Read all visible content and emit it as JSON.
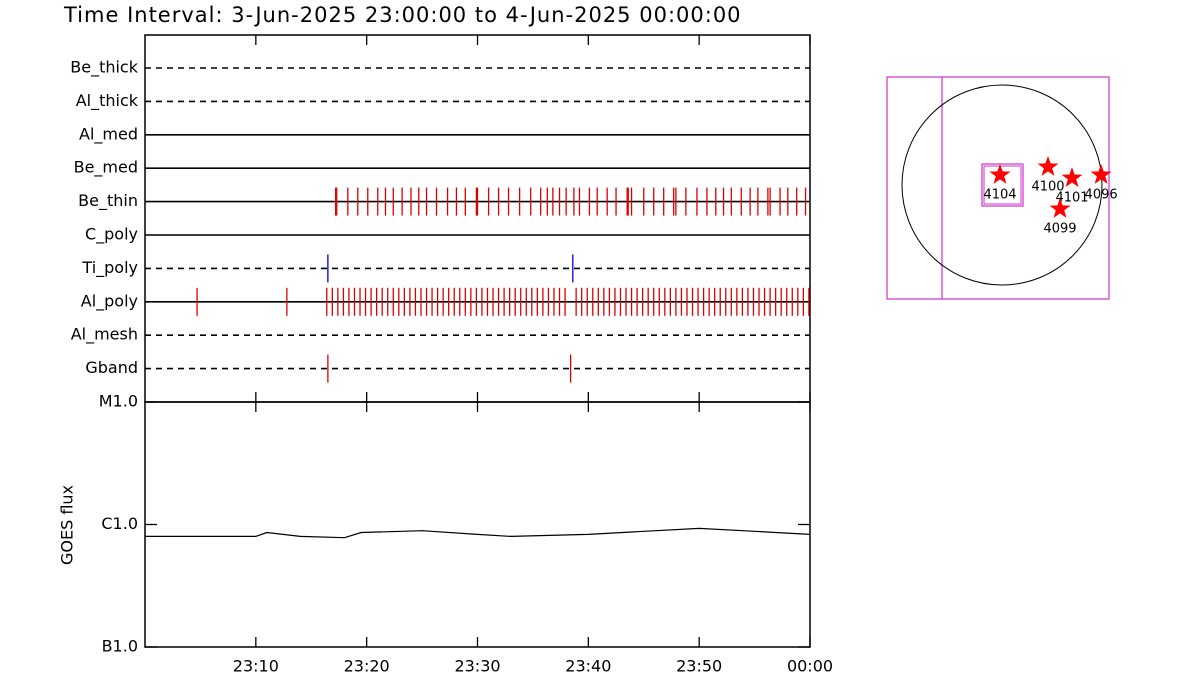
{
  "chart_data": [
    {
      "type": "timeline",
      "title": "Time Interval:  3-Jun-2025 23:00:00 to  4-Jun-2025 00:00:00",
      "xlim": [
        0,
        60
      ],
      "rows": [
        {
          "name": "Be_thick",
          "style": "dashed",
          "color": "#cc0000",
          "events": []
        },
        {
          "name": "Al_thick",
          "style": "dashed",
          "color": "#cc0000",
          "events": []
        },
        {
          "name": "Al_med",
          "style": "solid",
          "color": "#cc0000",
          "events": []
        },
        {
          "name": "Be_med",
          "style": "solid",
          "color": "#cc0000",
          "events": []
        },
        {
          "name": "Be_thin",
          "style": "solid",
          "color": "#dd0000",
          "events": [
            17.2,
            17.3,
            18.3,
            19.2,
            20.1,
            21.0,
            21.7,
            22.4,
            23.2,
            24.0,
            24.7,
            25.4,
            26.3,
            27.3,
            28.1,
            28.9,
            29.9,
            30.0,
            31.0,
            31.9,
            32.8,
            33.8,
            34.8,
            35.7,
            36.3,
            36.8,
            37.4,
            38.0,
            38.7,
            39.2,
            40.1,
            40.8,
            41.7,
            42.5,
            43.5,
            43.6,
            43.9,
            45.0,
            45.9,
            46.8,
            47.7,
            47.9,
            48.8,
            49.8,
            50.7,
            51.5,
            52.2,
            52.9,
            53.8,
            54.6,
            55.3,
            56.2,
            56.4,
            57.3,
            58.0,
            58.8,
            59.6
          ]
        },
        {
          "name": "C_poly",
          "style": "solid",
          "color": "#cc0000",
          "events": []
        },
        {
          "name": "Ti_poly",
          "style": "dashed",
          "color": "#0000cc",
          "events": [
            16.5,
            38.6
          ]
        },
        {
          "name": "Al_poly",
          "style": "solid",
          "color": "#dd0000",
          "events": [
            4.7,
            12.8,
            16.4,
            16.9,
            17.4,
            17.9,
            18.4,
            18.9,
            19.4,
            19.9,
            20.4,
            20.9,
            21.4,
            21.9,
            22.4,
            22.9,
            23.4,
            23.9,
            24.4,
            24.9,
            25.4,
            25.9,
            26.4,
            26.9,
            27.4,
            27.9,
            28.4,
            28.9,
            29.4,
            29.9,
            30.4,
            30.9,
            31.4,
            31.9,
            32.4,
            32.9,
            33.4,
            33.9,
            34.4,
            34.9,
            35.4,
            35.9,
            36.4,
            36.9,
            37.4,
            37.9,
            38.9,
            39.4,
            39.9,
            40.4,
            40.9,
            41.4,
            41.9,
            42.4,
            42.9,
            43.4,
            43.9,
            44.4,
            44.9,
            45.4,
            45.9,
            46.4,
            46.9,
            47.4,
            47.9,
            48.4,
            48.9,
            49.4,
            49.9,
            50.4,
            50.9,
            51.4,
            51.9,
            52.4,
            52.9,
            53.4,
            53.9,
            54.4,
            54.9,
            55.4,
            55.9,
            56.4,
            56.9,
            57.4,
            57.9,
            58.4,
            58.9,
            59.4,
            59.9
          ]
        },
        {
          "name": "Al_mesh",
          "style": "dashed",
          "color": "#cc0000",
          "events": []
        },
        {
          "name": "Gband",
          "style": "dashed",
          "color": "#dd0000",
          "events": [
            16.5,
            38.4
          ]
        }
      ]
    },
    {
      "type": "line",
      "ylabel": "GOES flux",
      "log": true,
      "color": "#000000",
      "x": [
        0,
        10,
        11,
        14,
        18,
        19.5,
        25,
        30,
        33,
        40,
        45,
        50,
        55,
        60
      ],
      "values": [
        8e-07,
        8e-07,
        8.6e-07,
        8e-07,
        7.8e-07,
        8.6e-07,
        8.9e-07,
        8.3e-07,
        8e-07,
        8.3e-07,
        8.8e-07,
        9.3e-07,
        8.8e-07,
        8.3e-07
      ],
      "xlim": [
        0,
        60
      ],
      "xticks": [
        {
          "value": 10,
          "label": "23:10"
        },
        {
          "value": 20,
          "label": "23:20"
        },
        {
          "value": 30,
          "label": "23:30"
        },
        {
          "value": 40,
          "label": "23:40"
        },
        {
          "value": 50,
          "label": "23:50"
        },
        {
          "value": 60,
          "label": "00:00"
        }
      ],
      "ylim": [
        1e-07,
        1e-05
      ],
      "yticks": [
        {
          "value": 1e-07,
          "label": "B1.0"
        },
        {
          "value": 1e-06,
          "label": "C1.0"
        },
        {
          "value": 1e-05,
          "label": "M1.0"
        }
      ]
    },
    {
      "type": "scatter",
      "color": "#ff0000",
      "xlim": [
        -1092,
        1016
      ],
      "ylim": [
        -1083,
        1026
      ],
      "x": [
        -19,
        437,
        665,
        941,
        551
      ],
      "values": [
        95,
        171,
        66,
        95,
        -228
      ],
      "point_labels": [
        "4104",
        "4100",
        "4101",
        "4096",
        "4099"
      ]
    }
  ]
}
